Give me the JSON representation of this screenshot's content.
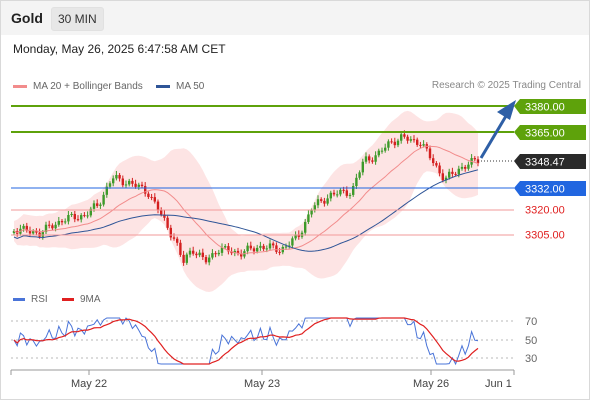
{
  "header": {
    "instrument": "Gold",
    "timeframe": "30 MIN",
    "datetime": "Monday, May 26, 2025 6:47:58 AM CET"
  },
  "legend": {
    "main": [
      {
        "label": "MA 20 + Bollinger Bands",
        "color": "#f28c8c"
      },
      {
        "label": "MA 50",
        "color": "#2f5597"
      }
    ],
    "oscillator": [
      {
        "label": "RSI",
        "color": "#4a74d8"
      },
      {
        "label": "9MA",
        "color": "#e02020"
      }
    ]
  },
  "credit": "Research © 2025 Trading Central",
  "levels": [
    {
      "label": "3380.00",
      "kind": "target",
      "color": "#5ea20b"
    },
    {
      "label": "3365.00",
      "kind": "resistance",
      "color": "#5ea20b"
    },
    {
      "label": "3348.47",
      "kind": "last",
      "color": "#2a2a2a"
    },
    {
      "label": "3332.00",
      "kind": "pivot",
      "color": "#2166e0"
    },
    {
      "label": "3320.00",
      "kind": "support",
      "color": "#e02020"
    },
    {
      "label": "3305.00",
      "kind": "support",
      "color": "#e02020"
    }
  ],
  "rsi_ticks": [
    "70",
    "50",
    "30"
  ],
  "x_axis": [
    "May 22",
    "May 23",
    "May 26",
    "Jun 1"
  ],
  "colors": {
    "bull": "#3d9a2a",
    "bear": "#d42020",
    "band_fill": "#fde4e4",
    "arrow": "#2e5fa6"
  }
}
